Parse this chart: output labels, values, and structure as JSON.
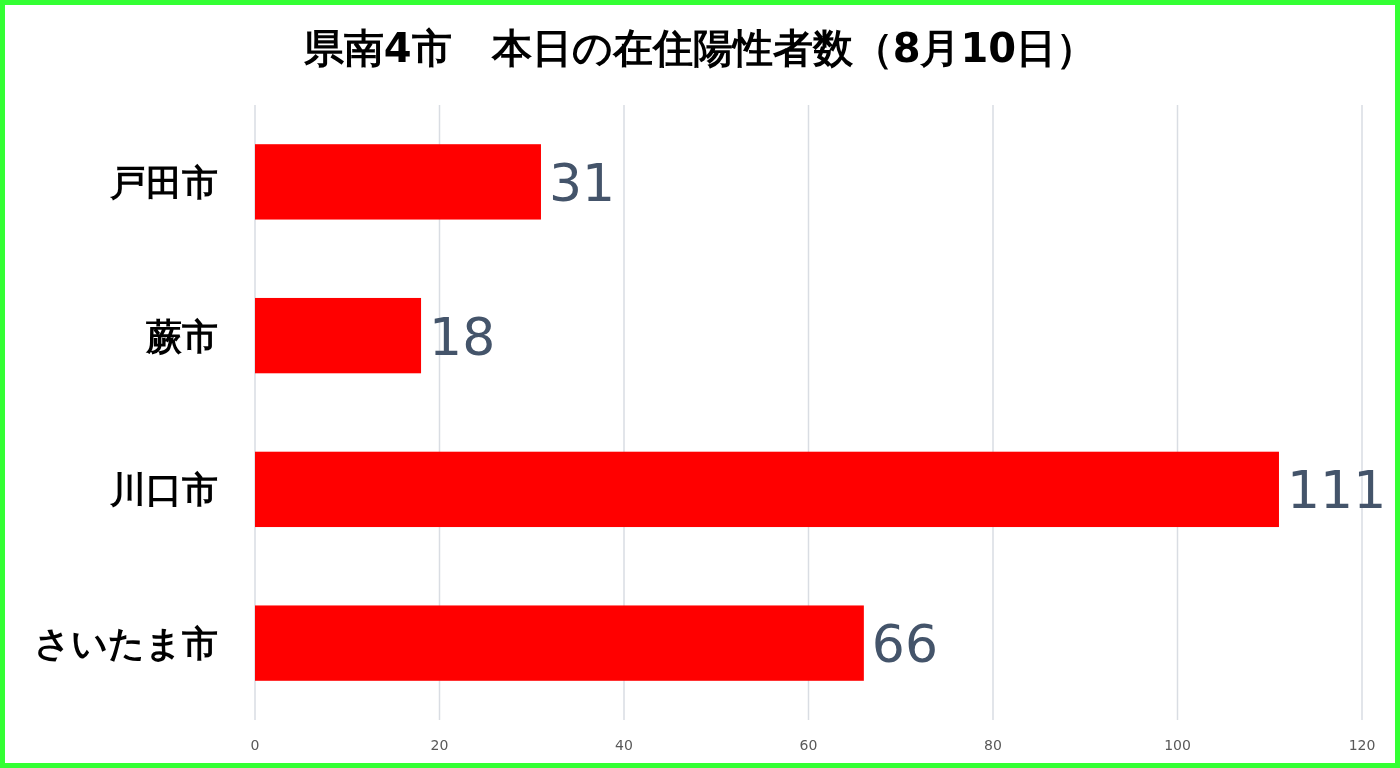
{
  "chart_data": {
    "type": "bar",
    "orientation": "horizontal",
    "title": "県南4市　本日の在住陽性者数（8月10日）",
    "categories": [
      "戸田市",
      "蕨市",
      "川口市",
      "さいたま市"
    ],
    "values": [
      31,
      18,
      111,
      66
    ],
    "color": "#ff0000",
    "xlim": [
      0,
      120
    ],
    "xticks": [
      0,
      20,
      40,
      60,
      80,
      100,
      120
    ],
    "grid": "x",
    "data_labels": true
  }
}
